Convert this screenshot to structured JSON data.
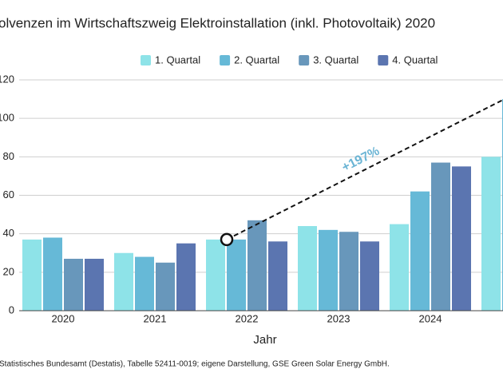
{
  "chart_data": {
    "type": "bar",
    "title": "olvenzen im Wirtschaftszweig Elektroinstallation (inkl. Photovoltaik) 2020",
    "x_label": "Jahr",
    "source": "Statistisches Bundesamt (Destatis), Tabelle 52411-0019; eigene Darstellung, GSE Green Solar Energy GmbH.",
    "annotation": "+197%",
    "categories": [
      "2020",
      "2021",
      "2022",
      "2023",
      "2024",
      null
    ],
    "series": [
      {
        "name": "1. Quartal",
        "color": "#8ee3e8",
        "values": [
          37,
          30,
          37,
          44,
          45,
          80
        ]
      },
      {
        "name": "2. Quartal",
        "color": "#66b9d7",
        "values": [
          38,
          28,
          37,
          42,
          62,
          110
        ]
      },
      {
        "name": "3. Quartal",
        "color": "#6897bb",
        "values": [
          27,
          25,
          47,
          41,
          77,
          null
        ]
      },
      {
        "name": "4. Quartal",
        "color": "#5b75b0",
        "values": [
          27,
          35,
          36,
          36,
          75,
          null
        ]
      }
    ],
    "ylim": [
      0,
      120
    ],
    "yticks": [
      0,
      20,
      40,
      60,
      80,
      100,
      120
    ],
    "grid": true
  }
}
